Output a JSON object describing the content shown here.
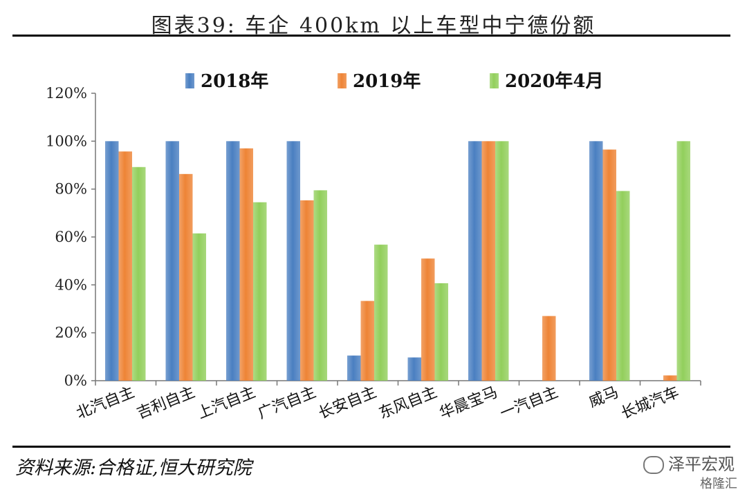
{
  "title": "图表39:  车企 400km 以上车型中宁德份额",
  "source": "资料来源:合格证,恒大研究院",
  "watermark": "泽平宏观",
  "watermark2": "格隆汇",
  "colors": {
    "s2018": "#4a7fc1",
    "s2019": "#ee8436",
    "s2020": "#92cf5c"
  },
  "chart_data": {
    "type": "bar",
    "categories": [
      "北汽自主",
      "吉利自主",
      "上汽自主",
      "广汽自主",
      "长安自主",
      "东风自主",
      "华晨宝马",
      "一汽自主",
      "威马",
      "长城汽车"
    ],
    "series": [
      {
        "name": "2018年",
        "values": [
          100,
          100,
          100,
          100,
          10.5,
          9.7,
          100,
          null,
          100,
          null
        ]
      },
      {
        "name": "2019年",
        "values": [
          95.7,
          86.3,
          97,
          75.3,
          33.3,
          51,
          100,
          27,
          96.5,
          2.2
        ]
      },
      {
        "name": "2020年4月",
        "values": [
          89.2,
          61.5,
          74.5,
          79.5,
          56.8,
          40.7,
          100,
          null,
          79.2,
          100
        ]
      }
    ],
    "ylim": [
      0,
      120
    ],
    "yticks": [
      "0%",
      "20%",
      "40%",
      "60%",
      "80%",
      "100%",
      "120%"
    ],
    "legend": "top"
  }
}
